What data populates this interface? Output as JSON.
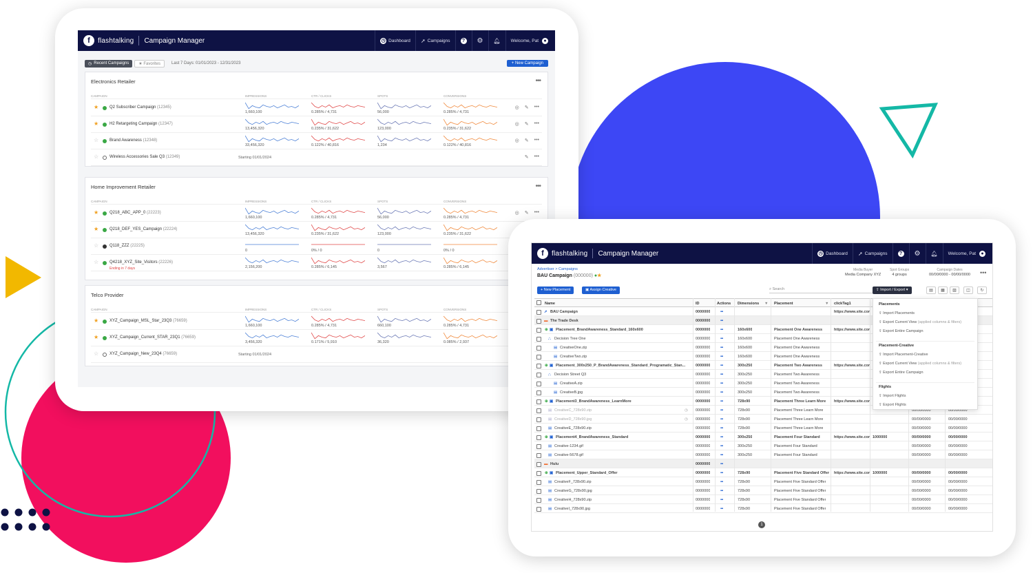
{
  "colors": {
    "navy": "#0e1244",
    "accent": "#1e5fd1",
    "blue_circle": "#3d47f5",
    "pink": "#f20f5e",
    "teal": "#14b8a6",
    "yellow": "#f2b800"
  },
  "app": {
    "brand": "flashtalking",
    "name": "Campaign Manager",
    "nav": [
      "Dashboard",
      "Campaigns"
    ],
    "welcome": "Welcome, Pat"
  },
  "list_view": {
    "tab_recent": "Recent Campaigns",
    "tab_favorites": "Favorites",
    "date_range": "Last 7 Days: 01/01/2023 - 12/31/2023",
    "new_campaign": "+ New Campaign",
    "columns": [
      "CAMPAIGN",
      "IMPRESSIONS",
      "CTR / CLICKS",
      "SPOTS",
      "CONVERSIONS"
    ],
    "groups": [
      {
        "title": "Electronics Retailer",
        "rows": [
          {
            "name": "Q2 Subscriber Campaign",
            "id": "(12345)",
            "star": true,
            "status": "active",
            "imp": "1,660,100",
            "ctr": "0.285% / 4,731",
            "spots": "56,000",
            "conv": "0.285% / 4,731"
          },
          {
            "name": "H2 Retargeting Campaign",
            "id": "(12347)",
            "star": true,
            "status": "active",
            "imp": "13,456,320",
            "ctr": "0.235% / 31,622",
            "spots": "123,000",
            "conv": "0.235% / 31,622"
          },
          {
            "name": "Brand Awareness",
            "id": "(12348)",
            "star": false,
            "status": "active",
            "imp": "33,456,320",
            "ctr": "0.122% / 40,816",
            "spots": "1,234",
            "conv": "0.122% / 40,816"
          },
          {
            "name": "Wireless Accessories Sale Q3",
            "id": "(12349)",
            "star": false,
            "status": "pending",
            "starting": "Starting 01/01/2024"
          }
        ]
      },
      {
        "title": "Home Improvement Retailer",
        "rows": [
          {
            "name": "Q218_ABC_APP_0",
            "id": "(22223)",
            "star": true,
            "status": "active",
            "imp": "1,660,100",
            "ctr": "0.285% / 4,731",
            "spots": "56,000",
            "conv": "0.285% / 4,731"
          },
          {
            "name": "Q218_DEF_YES_Campaign",
            "id": "(22224)",
            "star": true,
            "status": "active",
            "imp": "13,456,320",
            "ctr": "0.235% / 31,622",
            "spots": "123,000",
            "conv": "0.235% / 31,622"
          },
          {
            "name": "Q118_ZZZ",
            "id": "(22225)",
            "star": false,
            "status": "ended",
            "imp": "0",
            "ctr": "0% / 0",
            "spots": "0",
            "conv": "0% / 0"
          },
          {
            "name": "Q4218_XYZ_Site_Visitors",
            "id": "(22226)",
            "star": false,
            "status": "active",
            "note": "Ending in 7 days",
            "imp": "2,156,200",
            "ctr": "0.285% / 6,145",
            "spots": "3,567",
            "conv": "0.285% / 6,145"
          }
        ]
      },
      {
        "title": "Telco Provider",
        "rows": [
          {
            "name": "XYZ_Campaign_MSL_Star_23Q3",
            "id": "(76659)",
            "star": true,
            "status": "active",
            "imp": "1,660,100",
            "ctr": "0.285% / 4,731",
            "spots": "660,100",
            "conv": "0.285% / 4,731"
          },
          {
            "name": "XYZ_Campaign_Current_STAR_23Q1",
            "id": "(76659)",
            "star": true,
            "status": "active",
            "imp": "3,456,320",
            "ctr": "0.171% / 5,910",
            "spots": "36,320",
            "conv": "0.085% / 2,937"
          },
          {
            "name": "XYZ_Campaign_New_23Q4",
            "id": "(76659)",
            "star": false,
            "status": "pending",
            "starting": "Starting 01/01/2024"
          }
        ]
      }
    ]
  },
  "detail_view": {
    "breadcrumb": "Advertiser > Campaigns",
    "campaign": "BAU Campaign",
    "campaign_id": "(000000)",
    "meta": [
      {
        "label": "Media Buyer",
        "value": "Media Company XYZ"
      },
      {
        "label": "Spot Groups",
        "value": "4 groups"
      },
      {
        "label": "Campaign Dates",
        "value": "00/00/0000 - 00/00/0000"
      }
    ],
    "btn_new_placement": "+ New Placement",
    "btn_assign_creative": "Assign Creative",
    "search_placeholder": "Search",
    "btn_import_export": "Import / Export",
    "columns": [
      "Name",
      "ID",
      "Actions",
      "Dimensions",
      "Placement",
      "clickTag1"
    ],
    "rows": [
      {
        "name": "BAU Campaign",
        "type": "campaign",
        "id": "0000000",
        "click": "https://www.site.com"
      },
      {
        "name": "The Trade Desk",
        "type": "site",
        "id": "0000000"
      },
      {
        "name": "Placement_BrandAwareness_Standard_160x600",
        "type": "placement",
        "id": "0000000",
        "dim": "160x600",
        "plc": "Placement One Awareness",
        "click": "https://www.site.com"
      },
      {
        "name": "Decision Tree One",
        "type": "tree",
        "id": "0000000",
        "dim": "160x600",
        "plc": "Placement One Awareness"
      },
      {
        "name": "CreativeOne.zip",
        "type": "creative2",
        "id": "0000000",
        "dim": "160x600",
        "plc": "Placement One Awareness"
      },
      {
        "name": "CreativeTwo.zip",
        "type": "creative2",
        "id": "0000000",
        "dim": "160x600",
        "plc": "Placement One Awareness"
      },
      {
        "name": "Placement_300x250_P_BrandAwareness_Standard_Programatic_Stan...",
        "type": "placement",
        "id": "0000000",
        "dim": "300x250",
        "plc": "Placement Two Awareness",
        "click": "https://www.site.com"
      },
      {
        "name": "Decision Street Q3",
        "type": "tree",
        "id": "0000000",
        "dim": "300x250",
        "plc": "Placement Two Awareness"
      },
      {
        "name": "CreativeA.zip",
        "type": "creative2",
        "id": "0000000",
        "dim": "300x250",
        "plc": "Placement Two Awareness"
      },
      {
        "name": "CreativeB.jpg",
        "type": "creative2",
        "id": "0000000",
        "dim": "300x250",
        "plc": "Placement Two Awareness"
      },
      {
        "name": "Placement3_BrandAwareness_LearnMore",
        "type": "placement",
        "id": "0000000",
        "dim": "728x90",
        "plc": "Placement Three Learn More",
        "click": "https://www.site.com"
      },
      {
        "name": "CreativeC_728x90.zip",
        "type": "creative-dim",
        "id": "0000000",
        "dim": "728x90",
        "plc": "Placement Three Learn More",
        "d1": "00/00/0000",
        "d2": "00/00/0000"
      },
      {
        "name": "CreativeD_728x90.jpg",
        "type": "creative-dim",
        "id": "0000000",
        "dim": "728x90",
        "plc": "Placement Three Learn More",
        "d1": "00/00/0000",
        "d2": "00/00/0000"
      },
      {
        "name": "CreativeE_728x90.zip",
        "type": "creative",
        "id": "0000000",
        "dim": "728x90",
        "plc": "Placement Three Learn More",
        "d1": "00/00/0000",
        "d2": "00/00/0000"
      },
      {
        "name": "Placement4_BrandAwareness_Standard",
        "type": "placement",
        "id": "0000000",
        "dim": "300x250",
        "plc": "Placement Four Standard",
        "click": "https://www.site.com",
        "n": "1000000",
        "d1": "00/00/0000",
        "d2": "00/00/0000"
      },
      {
        "name": "Creative-1234.gif",
        "type": "creative",
        "id": "0000000",
        "dim": "300x250",
        "plc": "Placement Four Standard",
        "d1": "00/00/0000",
        "d2": "00/00/0000"
      },
      {
        "name": "Creative-5678.gif",
        "type": "creative",
        "id": "0000000",
        "dim": "300x250",
        "plc": "Placement Four Standard",
        "d1": "00/00/0000",
        "d2": "00/00/0000"
      },
      {
        "name": "Hulu",
        "type": "site",
        "id": "0000000"
      },
      {
        "name": "Placement_Upper_Standard_Offer",
        "type": "placement",
        "id": "0000000",
        "dim": "728x90",
        "plc": "Placement Five Standard Offer",
        "click": "https://www.site.com",
        "n": "1000000",
        "d1": "00/00/0000",
        "d2": "00/00/0000"
      },
      {
        "name": "CreativeF_728x90.zip",
        "type": "creative",
        "id": "0000000",
        "dim": "728x90",
        "plc": "Placement Five Standard Offer",
        "d1": "00/00/0000",
        "d2": "00/00/0000"
      },
      {
        "name": "CreativeG_728x90.jpg",
        "type": "creative",
        "id": "0000000",
        "dim": "728x90",
        "plc": "Placement Five Standard Offer",
        "d1": "00/00/0000",
        "d2": "00/00/0000"
      },
      {
        "name": "CreativeH_728x90.zip",
        "type": "creative",
        "id": "0000000",
        "dim": "728x90",
        "plc": "Placement Five Standard Offer",
        "d1": "00/00/0000",
        "d2": "00/00/0000"
      },
      {
        "name": "CreativeI_728x90.jpg",
        "type": "creative",
        "id": "0000000",
        "dim": "728x90",
        "plc": "Placement Five Standard Offer",
        "d1": "00/00/0000",
        "d2": "00/00/0000"
      }
    ],
    "dropdown": [
      {
        "section": "Placements",
        "items": [
          {
            "label": "Import Placements"
          },
          {
            "label": "Export Current View",
            "hint": "(applied columns & filters)"
          },
          {
            "label": "Export Entire Campaign"
          }
        ]
      },
      {
        "section": "Placement-Creative",
        "items": [
          {
            "label": "Import Placement-Creative"
          },
          {
            "label": "Export Current View",
            "hint": "(applied columns & filters)"
          },
          {
            "label": "Export Entire Campaign"
          }
        ]
      },
      {
        "section": "Flights",
        "items": [
          {
            "label": "Import Flights"
          },
          {
            "label": "Export Flights"
          }
        ]
      }
    ],
    "page": "1"
  }
}
